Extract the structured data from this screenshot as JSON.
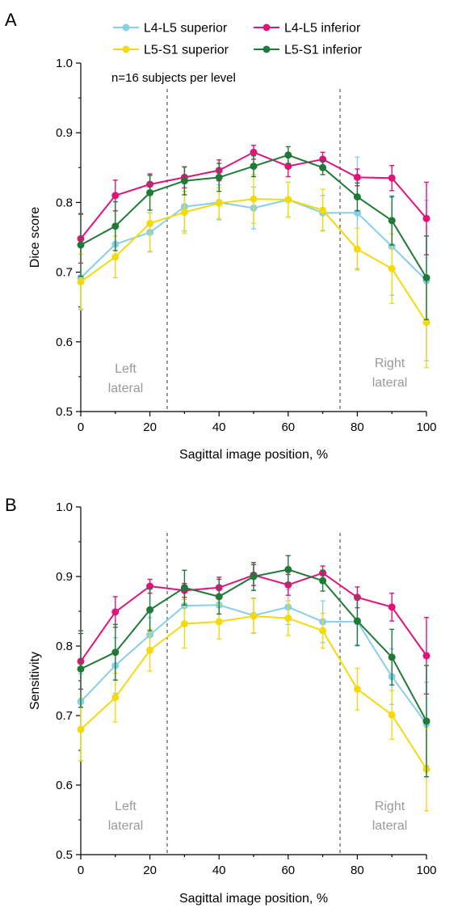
{
  "legend": [
    {
      "label": "L4-L5 superior",
      "color": "#87ceeb"
    },
    {
      "label": "L4-L5 inferior",
      "color": "#e2127a"
    },
    {
      "label": "L5-S1 superior",
      "color": "#f5d90f"
    },
    {
      "label": "L5-S1 inferior",
      "color": "#1e7a36"
    }
  ],
  "chart_data": [
    {
      "panel": "A",
      "type": "line",
      "xlabel": "Sagittal image position, %",
      "ylabel": "Dice score",
      "xlim": [
        0,
        100
      ],
      "ylim": [
        0.5,
        1.0
      ],
      "xticks": [
        "0",
        "20",
        "40",
        "60",
        "80",
        "100"
      ],
      "yticks": [
        "0.5",
        "0.6",
        "0.7",
        "0.8",
        "0.9",
        "1.0"
      ],
      "note": "n=16 subjects per level",
      "regions": {
        "left": {
          "x": 25,
          "lines": [
            "Left",
            "lateral"
          ]
        },
        "right": {
          "x": 75,
          "lines": [
            "Right",
            "lateral"
          ]
        }
      },
      "x": [
        0,
        10,
        20,
        30,
        40,
        50,
        60,
        70,
        80,
        90,
        100
      ],
      "series": [
        {
          "name": "L4-L5 superior",
          "color": "#87ceeb",
          "values": [
            0.692,
            0.74,
            0.757,
            0.794,
            0.8,
            0.792,
            0.804,
            0.785,
            0.785,
            0.737,
            0.688
          ],
          "error": [
            0.045,
            0.048,
            0.028,
            0.035,
            0.025,
            0.03,
            0.025,
            0.025,
            0.08,
            0.07,
            0.115
          ]
        },
        {
          "name": "L4-L5 inferior",
          "color": "#e2127a",
          "values": [
            0.748,
            0.81,
            0.826,
            0.836,
            0.846,
            0.872,
            0.852,
            0.862,
            0.836,
            0.835,
            0.777
          ],
          "error": [
            0.035,
            0.022,
            0.015,
            0.015,
            0.015,
            0.01,
            0.015,
            0.01,
            0.012,
            0.018,
            0.052
          ]
        },
        {
          "name": "L5-S1 superior",
          "color": "#f5d90f",
          "values": [
            0.686,
            0.722,
            0.77,
            0.786,
            0.799,
            0.805,
            0.804,
            0.789,
            0.733,
            0.705,
            0.628
          ],
          "error": [
            0.04,
            0.03,
            0.04,
            0.03,
            0.022,
            0.035,
            0.025,
            0.03,
            0.03,
            0.05,
            0.065
          ]
        },
        {
          "name": "L5-S1 inferior",
          "color": "#1e7a36",
          "values": [
            0.739,
            0.766,
            0.814,
            0.831,
            0.836,
            0.852,
            0.868,
            0.85,
            0.808,
            0.774,
            0.692
          ],
          "error": [
            0.045,
            0.035,
            0.025,
            0.02,
            0.02,
            0.015,
            0.012,
            0.01,
            0.02,
            0.035,
            0.06
          ]
        }
      ]
    },
    {
      "panel": "B",
      "type": "line",
      "xlabel": "Sagittal image position, %",
      "ylabel": "Sensitivity",
      "xlim": [
        0,
        100
      ],
      "ylim": [
        0.5,
        1.0
      ],
      "xticks": [
        "0",
        "20",
        "40",
        "60",
        "80",
        "100"
      ],
      "yticks": [
        "0.5",
        "0.6",
        "0.7",
        "0.8",
        "0.9",
        "1.0"
      ],
      "regions": {
        "left": {
          "x": 25,
          "lines": [
            "Left",
            "lateral"
          ]
        },
        "right": {
          "x": 75,
          "lines": [
            "Right",
            "lateral"
          ]
        }
      },
      "x": [
        0,
        10,
        20,
        30,
        40,
        50,
        60,
        70,
        80,
        90,
        100
      ],
      "series": [
        {
          "name": "L4-L5 superior",
          "color": "#87ceeb",
          "values": [
            0.72,
            0.772,
            0.816,
            0.858,
            0.859,
            0.844,
            0.856,
            0.835,
            0.835,
            0.756,
            0.688
          ],
          "error": [
            0.04,
            0.04,
            0.025,
            0.025,
            0.025,
            0.025,
            0.025,
            0.03,
            0.035,
            0.04,
            0.06
          ]
        },
        {
          "name": "L4-L5 inferior",
          "color": "#e2127a",
          "values": [
            0.778,
            0.849,
            0.886,
            0.88,
            0.884,
            0.902,
            0.888,
            0.905,
            0.87,
            0.856,
            0.786
          ],
          "error": [
            0.04,
            0.022,
            0.01,
            0.01,
            0.015,
            0.015,
            0.015,
            0.01,
            0.015,
            0.02,
            0.055
          ]
        },
        {
          "name": "L5-S1 superior",
          "color": "#f5d90f",
          "values": [
            0.68,
            0.726,
            0.794,
            0.832,
            0.835,
            0.843,
            0.84,
            0.822,
            0.738,
            0.701,
            0.623
          ],
          "error": [
            0.045,
            0.035,
            0.03,
            0.035,
            0.025,
            0.025,
            0.025,
            0.025,
            0.03,
            0.035,
            0.06
          ]
        },
        {
          "name": "L5-S1 inferior",
          "color": "#1e7a36",
          "values": [
            0.767,
            0.791,
            0.852,
            0.884,
            0.871,
            0.9,
            0.91,
            0.894,
            0.836,
            0.784,
            0.692
          ],
          "error": [
            0.055,
            0.04,
            0.03,
            0.025,
            0.025,
            0.02,
            0.02,
            0.015,
            0.035,
            0.04,
            0.08
          ]
        }
      ]
    }
  ]
}
